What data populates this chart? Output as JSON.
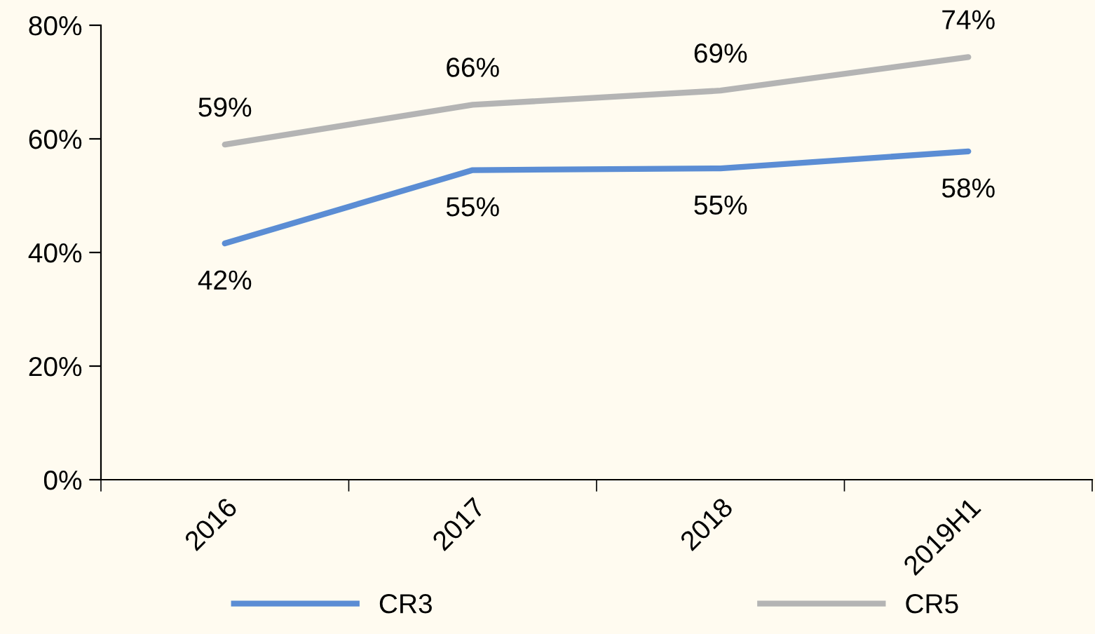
{
  "chart_data": {
    "type": "line",
    "categories": [
      "2016",
      "2017",
      "2018",
      "2019H1"
    ],
    "series": [
      {
        "name": "CR3",
        "color": "#5b8dd4",
        "values": [
          41.6,
          54.5,
          54.8,
          57.8
        ],
        "value_labels": [
          "42%",
          "55%",
          "55%",
          "58%"
        ]
      },
      {
        "name": "CR5",
        "color": "#b4b4b4",
        "values": [
          59,
          66,
          68.5,
          74.4
        ],
        "value_labels": [
          "59%",
          "66%",
          "69%",
          "74%"
        ]
      }
    ],
    "ylim": [
      0,
      80
    ],
    "yticks": [
      {
        "value": 0,
        "label": "0%"
      },
      {
        "value": 20,
        "label": "20%"
      },
      {
        "value": 40,
        "label": "40%"
      },
      {
        "value": 60,
        "label": "60%"
      },
      {
        "value": 80,
        "label": "80%"
      }
    ],
    "grid": false,
    "legend": "bottom",
    "marker": "none",
    "line_style": "solid"
  }
}
